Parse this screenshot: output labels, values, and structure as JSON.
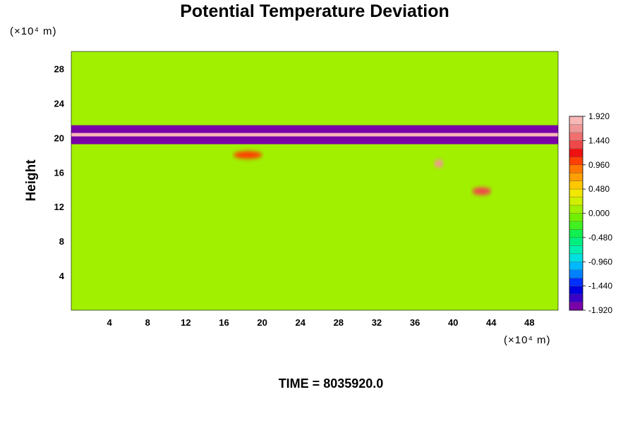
{
  "chart_data": {
    "type": "heatmap",
    "title": "Potential Temperature Deviation",
    "ylabel": "Height",
    "x_unit_label": "(×10⁴ m)",
    "y_unit_label": "(×10⁴ m)",
    "xlim": [
      0,
      51
    ],
    "ylim": [
      0,
      30
    ],
    "x_ticks": [
      4,
      8,
      12,
      16,
      20,
      24,
      28,
      32,
      36,
      40,
      44,
      48
    ],
    "y_ticks": [
      4,
      8,
      12,
      16,
      20,
      24,
      28
    ],
    "colorbar": {
      "min": -1.92,
      "max": 1.92,
      "levels": 24,
      "tick_labels": [
        "1.920",
        "1.440",
        "0.960",
        "0.480",
        "0.000",
        "-0.480",
        "-0.960",
        "-1.440",
        "-1.920"
      ],
      "tick_values": [
        1.92,
        1.44,
        0.96,
        0.48,
        0.0,
        -0.48,
        -0.96,
        -1.44,
        -1.92
      ],
      "colors": [
        "#7a00a8",
        "#3c00c8",
        "#0000e0",
        "#0030ff",
        "#0080ff",
        "#00b8ff",
        "#00e0e0",
        "#00f0b0",
        "#00f080",
        "#10f050",
        "#40f020",
        "#70f000",
        "#a0f000",
        "#d0f000",
        "#f0e800",
        "#ffc800",
        "#ffa000",
        "#ff7800",
        "#ff4000",
        "#f01010",
        "#f04848",
        "#f07070",
        "#f09898",
        "#f8b8b8"
      ]
    },
    "background_value": 0.05,
    "features": [
      {
        "name": "warm band",
        "x_range": [
          0,
          51
        ],
        "y": 20.3,
        "value": 1.92
      },
      {
        "name": "cold band upper",
        "x_range": [
          0,
          51
        ],
        "y": 21.0,
        "value": -1.92
      },
      {
        "name": "cold band lower",
        "x_range": [
          0,
          51
        ],
        "y": 19.7,
        "value": -1.92
      },
      {
        "name": "warm patch",
        "x_range": [
          17,
          20
        ],
        "y": 18.0,
        "value": 1.1
      },
      {
        "name": "warm patch",
        "x_range": [
          38,
          39
        ],
        "y": 17.0,
        "value": 1.6
      },
      {
        "name": "warm patch",
        "x_range": [
          42,
          44
        ],
        "y": 13.8,
        "value": 1.3
      }
    ]
  },
  "time_label": "TIME = 8035920.0"
}
